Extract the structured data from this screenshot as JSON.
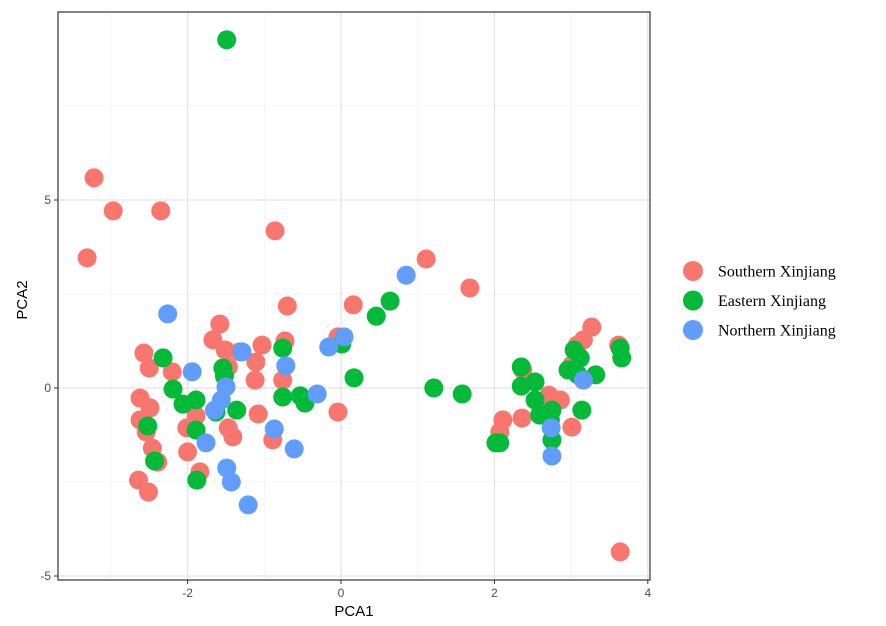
{
  "chart_data": {
    "type": "scatter",
    "title": "",
    "xlabel": "PCA1",
    "ylabel": "PCA2",
    "xlim": [
      -3.5,
      4.02
    ],
    "ylim": [
      -5.1,
      10.0
    ],
    "xticks": [
      -2,
      0,
      2,
      4
    ],
    "yticks": [
      -5,
      0,
      5
    ],
    "xtick_labels": [
      "-2",
      "0",
      "2",
      "4"
    ],
    "ytick_labels": [
      "-5",
      "0",
      "5"
    ],
    "grid": true,
    "legend_position": "right",
    "series": [
      {
        "name": "Southern Xinjiang",
        "color": "#F8766D",
        "points": [
          [
            -3.22,
            5.59
          ],
          [
            -2.97,
            4.71
          ],
          [
            -2.35,
            4.71
          ],
          [
            -3.31,
            3.46
          ],
          [
            -0.86,
            4.18
          ],
          [
            1.11,
            3.43
          ],
          [
            1.68,
            2.66
          ],
          [
            0.16,
            2.21
          ],
          [
            -0.7,
            2.18
          ],
          [
            -0.73,
            1.25
          ],
          [
            -1.58,
            1.7
          ],
          [
            -1.67,
            1.28
          ],
          [
            -1.51,
            1.01
          ],
          [
            -1.32,
            0.96
          ],
          [
            -2.57,
            0.93
          ],
          [
            -2.5,
            0.53
          ],
          [
            -2.2,
            0.43
          ],
          [
            -1.47,
            0.56
          ],
          [
            -1.11,
            0.69
          ],
          [
            -1.12,
            0.21
          ],
          [
            -0.76,
            0.21
          ],
          [
            -0.04,
            1.36
          ],
          [
            -2.62,
            -0.27
          ],
          [
            -2.49,
            -0.53
          ],
          [
            -2.62,
            -0.85
          ],
          [
            -2.54,
            -1.17
          ],
          [
            -2.46,
            -1.6
          ],
          [
            -2.39,
            -1.97
          ],
          [
            -2.64,
            -2.45
          ],
          [
            -2.51,
            -2.77
          ],
          [
            -2.01,
            -1.06
          ],
          [
            -1.89,
            -0.74
          ],
          [
            -2.0,
            -1.7
          ],
          [
            -1.84,
            -2.23
          ],
          [
            -1.47,
            -1.06
          ],
          [
            -1.41,
            -1.3
          ],
          [
            -1.08,
            -0.69
          ],
          [
            -0.89,
            -1.38
          ],
          [
            -0.04,
            -0.64
          ],
          [
            -1.03,
            1.14
          ],
          [
            2.11,
            -0.85
          ],
          [
            2.07,
            -1.17
          ],
          [
            2.36,
            -0.8
          ],
          [
            2.66,
            -0.59
          ],
          [
            2.37,
            0.48
          ],
          [
            2.71,
            -0.19
          ],
          [
            2.86,
            -0.32
          ],
          [
            3.16,
            1.28
          ],
          [
            3.27,
            1.62
          ],
          [
            3.08,
            1.14
          ],
          [
            3.64,
            -4.36
          ],
          [
            3.62,
            1.14
          ],
          [
            3.01,
            0.61
          ],
          [
            3.01,
            -1.04
          ]
        ]
      },
      {
        "name": "Eastern Xinjiang",
        "color": "#00BA38",
        "points": [
          [
            -1.49,
            9.26
          ],
          [
            0.64,
            2.31
          ],
          [
            0.46,
            1.91
          ],
          [
            0.17,
            0.27
          ],
          [
            0.01,
            1.17
          ],
          [
            1.21,
            0.0
          ],
          [
            1.58,
            -0.16
          ],
          [
            2.02,
            -1.46
          ],
          [
            2.07,
            -1.46
          ],
          [
            -2.32,
            0.8
          ],
          [
            -2.19,
            -0.03
          ],
          [
            -2.06,
            -0.43
          ],
          [
            -1.89,
            -0.32
          ],
          [
            -1.89,
            -1.12
          ],
          [
            -1.88,
            -2.45
          ],
          [
            -2.52,
            -1.01
          ],
          [
            -2.43,
            -1.94
          ],
          [
            -1.54,
            0.53
          ],
          [
            -1.52,
            0.32
          ],
          [
            -1.36,
            -0.59
          ],
          [
            -0.76,
            1.06
          ],
          [
            -0.76,
            -0.24
          ],
          [
            -0.47,
            -0.4
          ],
          [
            -1.63,
            -0.64
          ],
          [
            -0.53,
            -0.21
          ],
          [
            2.35,
            0.56
          ],
          [
            2.35,
            0.05
          ],
          [
            2.53,
            0.16
          ],
          [
            2.53,
            -0.32
          ],
          [
            2.59,
            -0.72
          ],
          [
            2.75,
            -0.59
          ],
          [
            2.75,
            -1.38
          ],
          [
            2.96,
            0.48
          ],
          [
            3.04,
            1.01
          ],
          [
            3.12,
            0.8
          ],
          [
            3.09,
            0.35
          ],
          [
            3.32,
            0.35
          ],
          [
            3.14,
            -0.59
          ],
          [
            2.73,
            -0.85
          ],
          [
            3.64,
            1.06
          ],
          [
            3.66,
            0.8
          ]
        ]
      },
      {
        "name": "Northern Xinjiang",
        "color": "#619CFF",
        "points": [
          [
            -2.26,
            1.97
          ],
          [
            -1.94,
            0.43
          ],
          [
            -1.29,
            0.96
          ],
          [
            -1.5,
            0.03
          ],
          [
            -1.56,
            -0.32
          ],
          [
            -1.65,
            -0.59
          ],
          [
            -1.76,
            -1.46
          ],
          [
            -1.49,
            -2.13
          ],
          [
            -1.43,
            -2.5
          ],
          [
            -1.21,
            -3.11
          ],
          [
            -0.72,
            0.59
          ],
          [
            -0.87,
            -1.09
          ],
          [
            -0.61,
            -1.62
          ],
          [
            -0.31,
            -0.16
          ],
          [
            -0.16,
            1.09
          ],
          [
            0.04,
            1.36
          ],
          [
            0.85,
            3.0
          ],
          [
            2.74,
            -1.06
          ],
          [
            2.75,
            -1.81
          ],
          [
            3.16,
            0.21
          ]
        ]
      }
    ]
  }
}
